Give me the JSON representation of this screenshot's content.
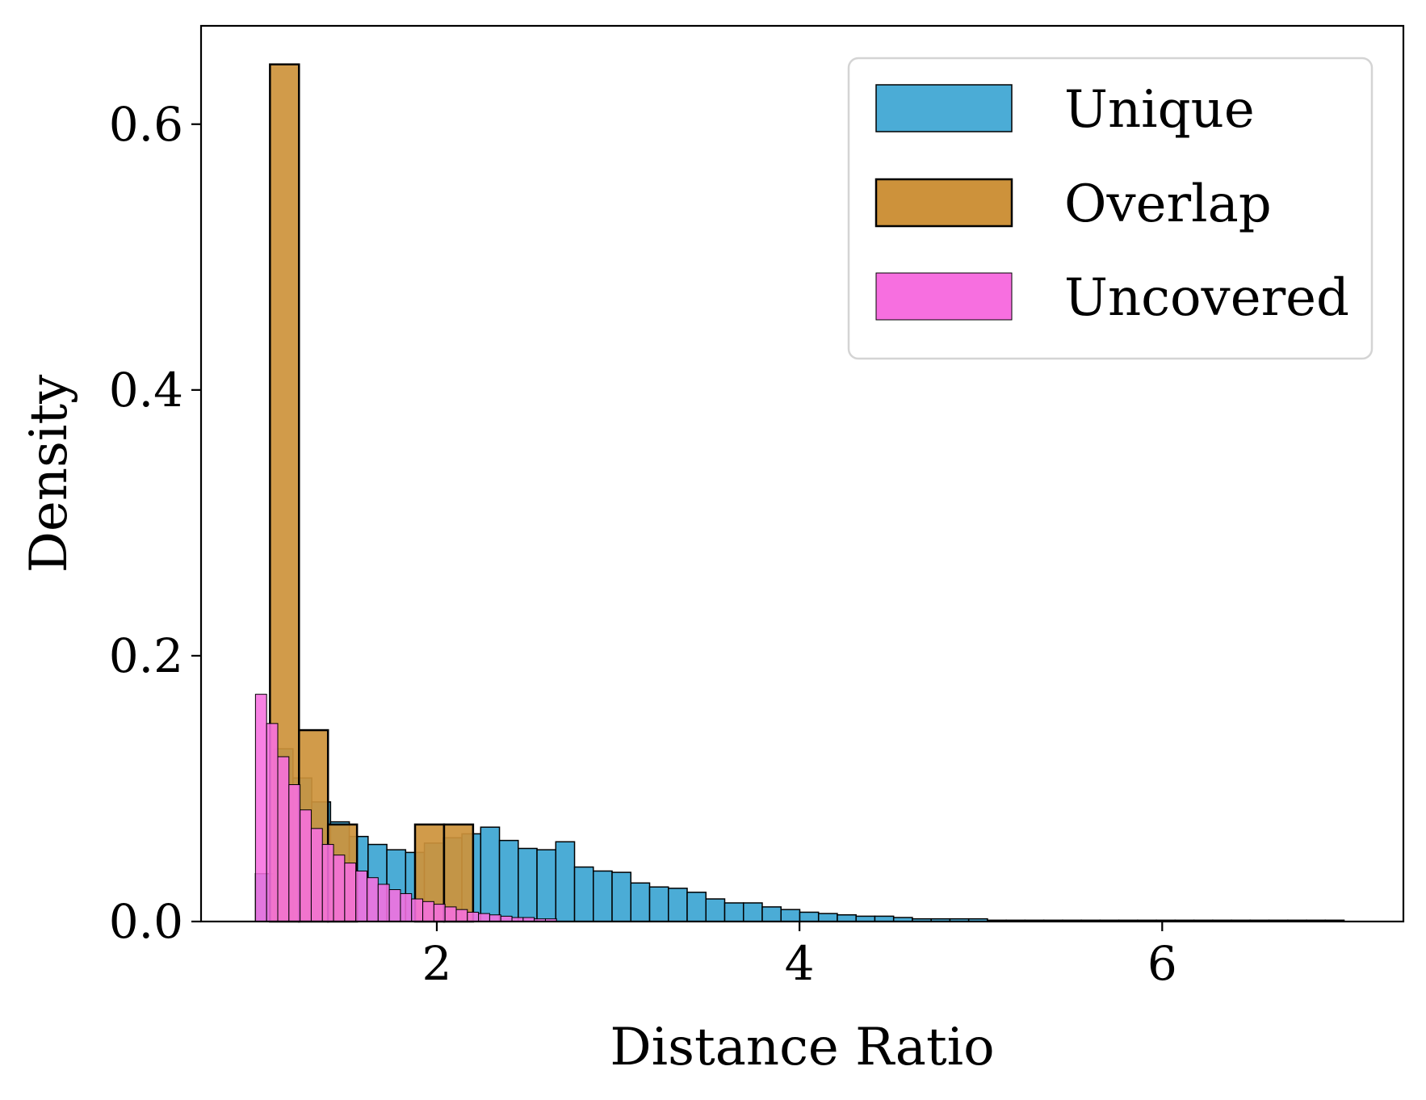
{
  "chart_data": {
    "type": "bar",
    "title": "",
    "xlabel": "Distance Ratio",
    "ylabel": "Density",
    "xlim": [
      0.7,
      7.33
    ],
    "ylim": [
      0,
      0.674
    ],
    "xticks": [
      2,
      4,
      6
    ],
    "yticks": [
      0.0,
      0.2,
      0.4,
      0.6
    ],
    "xtick_labels": [
      "2",
      "4",
      "6"
    ],
    "ytick_labels": [
      "0.0",
      "0.2",
      "0.4",
      "0.6"
    ],
    "legend_position": "top-right",
    "grid": false,
    "series": [
      {
        "name": "Unique",
        "color": "#4bacd6",
        "bin_start": 1.0,
        "bin_width": 0.1035,
        "values": [
          0.036,
          0.13,
          0.108,
          0.09,
          0.075,
          0.064,
          0.058,
          0.054,
          0.052,
          0.059,
          0.063,
          0.066,
          0.071,
          0.061,
          0.055,
          0.054,
          0.06,
          0.041,
          0.038,
          0.037,
          0.029,
          0.026,
          0.025,
          0.022,
          0.017,
          0.014,
          0.014,
          0.011,
          0.009,
          0.007,
          0.006,
          0.005,
          0.004,
          0.004,
          0.003,
          0.002,
          0.002,
          0.002,
          0.002,
          0.001,
          0.001,
          0.001,
          0.001,
          0.001,
          0.001,
          0.001,
          0.001,
          0.001,
          0.001,
          0.001,
          0.001,
          0.001,
          0.001,
          0.001,
          0.001,
          0.001,
          0.001,
          0.001
        ]
      },
      {
        "name": "Overlap",
        "color": "#cd923b",
        "bin_start": 1.08,
        "bin_width": 0.16,
        "values": [
          0.645,
          0.144,
          0.073,
          0.0,
          0.0,
          0.073,
          0.073
        ]
      },
      {
        "name": "Uncovered",
        "color": "#f76fe0",
        "bin_start": 1.0,
        "bin_width": 0.0615,
        "values": [
          0.171,
          0.149,
          0.124,
          0.103,
          0.084,
          0.07,
          0.058,
          0.05,
          0.044,
          0.038,
          0.033,
          0.028,
          0.024,
          0.021,
          0.017,
          0.015,
          0.013,
          0.011,
          0.009,
          0.007,
          0.006,
          0.005,
          0.004,
          0.003,
          0.003,
          0.002,
          0.002
        ]
      }
    ]
  }
}
